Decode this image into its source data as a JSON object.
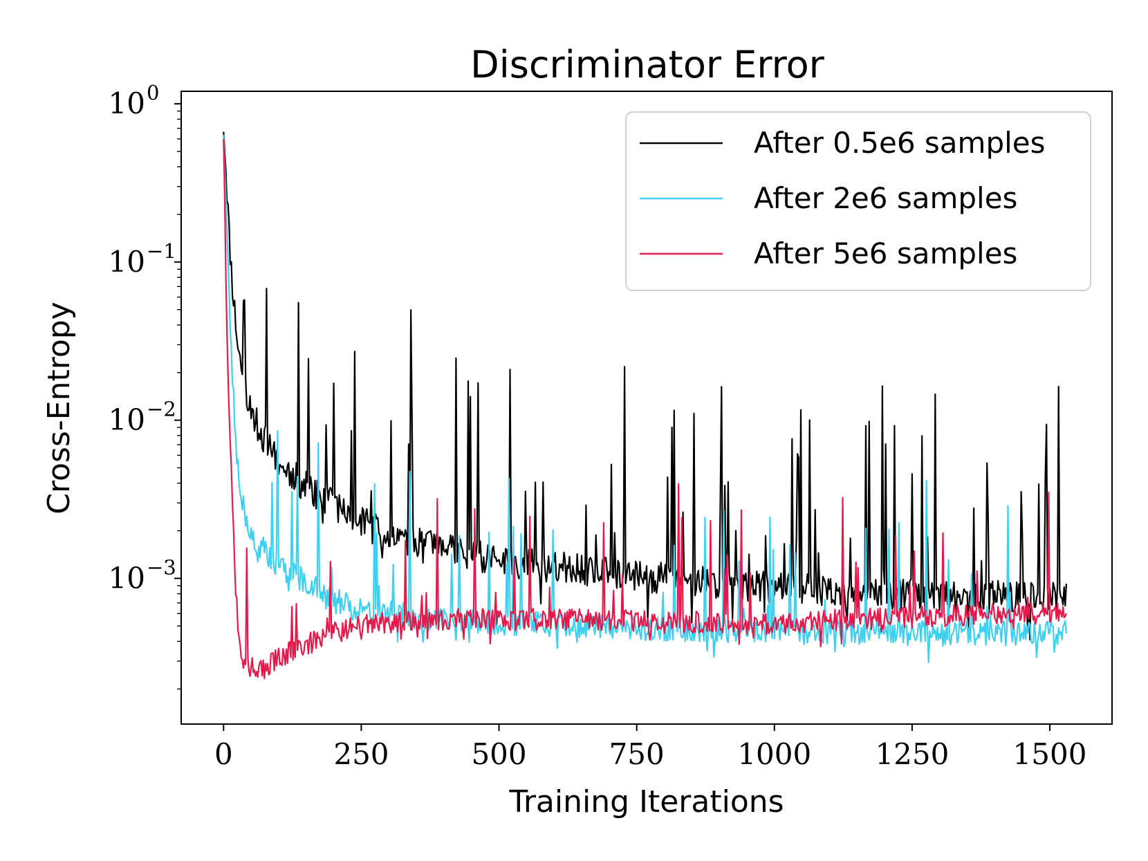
{
  "chart_data": {
    "type": "line",
    "title": "Discriminator Error",
    "xlabel": "Training Iterations",
    "ylabel": "Cross-Entropy",
    "xlim": [
      -77,
      1613
    ],
    "ylim": [
      0.00012,
      1.2
    ],
    "yscale": "log",
    "x_ticks": [
      {
        "value": 0,
        "label": "0"
      },
      {
        "value": 250,
        "label": "250"
      },
      {
        "value": 500,
        "label": "500"
      },
      {
        "value": 750,
        "label": "750"
      },
      {
        "value": 1000,
        "label": "1000"
      },
      {
        "value": 1250,
        "label": "1250"
      },
      {
        "value": 1500,
        "label": "1500"
      }
    ],
    "y_ticks": [
      {
        "value": 1,
        "base": "10",
        "exp": "0"
      },
      {
        "value": 0.1,
        "base": "10",
        "exp": "−1"
      },
      {
        "value": 0.01,
        "base": "10",
        "exp": "−2"
      },
      {
        "value": 0.001,
        "base": "10",
        "exp": "−3"
      }
    ],
    "legend_position": "top-right",
    "series": [
      {
        "name": "After 0.5e6 samples",
        "color": "#000000",
        "x": [
          0,
          5,
          10,
          15,
          20,
          25,
          30,
          40,
          50,
          60,
          75,
          90,
          100,
          125,
          150,
          175,
          200,
          250,
          300,
          350,
          400,
          450,
          500,
          550,
          600,
          650,
          700,
          750,
          800,
          850,
          900,
          950,
          1000,
          1050,
          1100,
          1150,
          1200,
          1250,
          1300,
          1350,
          1400,
          1450,
          1500,
          1530
        ],
        "values": [
          0.75,
          0.35,
          0.15,
          0.08,
          0.05,
          0.032,
          0.024,
          0.016,
          0.012,
          0.0095,
          0.0075,
          0.0062,
          0.0055,
          0.0045,
          0.0038,
          0.0033,
          0.0029,
          0.0023,
          0.0019,
          0.00168,
          0.00152,
          0.0014,
          0.0013,
          0.00124,
          0.00118,
          0.00113,
          0.00108,
          0.00104,
          0.001,
          0.00096,
          0.00093,
          0.0009,
          0.00088,
          0.00085,
          0.00083,
          0.00081,
          0.0008,
          0.00079,
          0.00078,
          0.00077,
          0.00077,
          0.00076,
          0.00076,
          0.00076
        ],
        "noise": 0.1,
        "spike_rate": 0.09,
        "spike_max": 1.4,
        "seed": 11
      },
      {
        "name": "After 2e6 samples",
        "color": "#3dd0f0",
        "x": [
          0,
          5,
          10,
          15,
          20,
          25,
          30,
          40,
          50,
          60,
          75,
          90,
          100,
          125,
          150,
          175,
          190,
          200,
          250,
          300,
          350,
          400,
          450,
          500,
          550,
          600,
          650,
          700,
          750,
          800,
          850,
          900,
          950,
          1000,
          1050,
          1100,
          1150,
          1200,
          1250,
          1300,
          1350,
          1400,
          1450,
          1500,
          1530
        ],
        "values": [
          0.7,
          0.2,
          0.06,
          0.022,
          0.01,
          0.0055,
          0.0038,
          0.0025,
          0.002,
          0.0017,
          0.0015,
          0.0013,
          0.0012,
          0.00105,
          0.00095,
          0.0009,
          0.00078,
          0.00072,
          0.00065,
          0.0006,
          0.00057,
          0.00055,
          0.00054,
          0.00053,
          0.00052,
          0.00051,
          0.0005,
          0.0005,
          0.00049,
          0.00048,
          0.00048,
          0.00047,
          0.00047,
          0.00047,
          0.00046,
          0.00046,
          0.00046,
          0.00046,
          0.00045,
          0.00045,
          0.00045,
          0.00045,
          0.00045,
          0.00045,
          0.00045
        ],
        "noise": 0.08,
        "spike_rate": 0.07,
        "spike_max": 0.95,
        "seed": 23
      },
      {
        "name": "After 5e6 samples",
        "color": "#e6194b",
        "x": [
          0,
          5,
          10,
          15,
          20,
          25,
          30,
          35,
          50,
          70,
          90,
          110,
          130,
          150,
          180,
          200,
          250,
          300,
          350,
          400,
          450,
          500,
          550,
          600,
          650,
          700,
          750,
          800,
          850,
          900,
          950,
          1000,
          1050,
          1100,
          1150,
          1200,
          1250,
          1300,
          1350,
          1400,
          1450,
          1500,
          1530
        ],
        "values": [
          0.65,
          0.06,
          0.012,
          0.004,
          0.0012,
          0.0006,
          0.00035,
          0.0003,
          0.00028,
          0.00026,
          0.0003,
          0.00033,
          0.00036,
          0.00038,
          0.00042,
          0.00045,
          0.0005,
          0.00053,
          0.00055,
          0.00055,
          0.00055,
          0.00055,
          0.00055,
          0.00055,
          0.00055,
          0.00054,
          0.00054,
          0.00053,
          0.00053,
          0.00052,
          0.00052,
          0.00052,
          0.00053,
          0.00054,
          0.00055,
          0.00056,
          0.00057,
          0.00058,
          0.00059,
          0.0006,
          0.0006,
          0.0006,
          0.0006
        ],
        "noise": 0.07,
        "spike_rate": 0.05,
        "spike_max": 0.85,
        "seed": 37
      }
    ]
  }
}
